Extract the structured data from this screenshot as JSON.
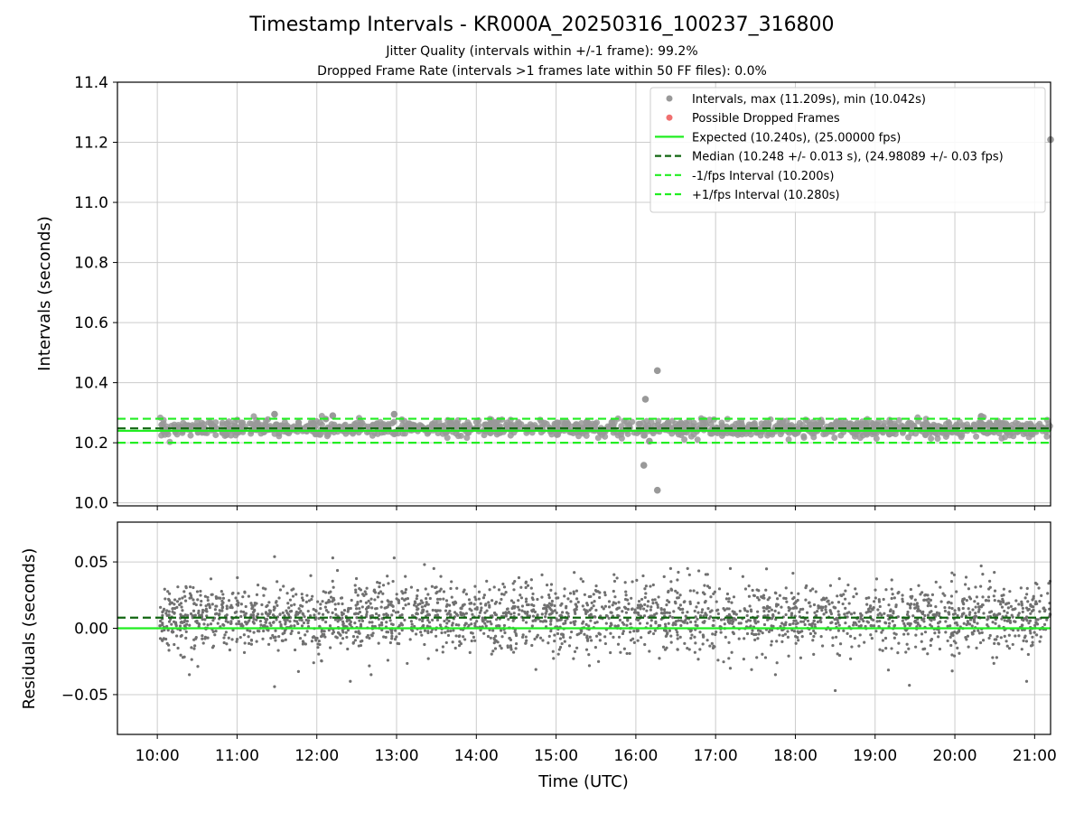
{
  "figure": {
    "title": "Timestamp Intervals - KR000A_20250316_100237_316800",
    "subtitle_1": "Jitter Quality (intervals within +/-1 frame): 99.2%",
    "subtitle_2": "Dropped Frame Rate (intervals >1 frames late within 50 FF files): 0.0%"
  },
  "colors": {
    "intervals": "#999999",
    "dropped": "#f07070",
    "expected": "#22ee22",
    "median": "#116611",
    "interval_band": "#22ee22",
    "residual_points": "#707070",
    "grid": "#cccccc"
  },
  "chart_data": [
    {
      "type": "scatter",
      "panel": "intervals",
      "ylabel": "Intervals (seconds)",
      "ylim": [
        9.99,
        11.4
      ],
      "xlim_hours": [
        9.5,
        21.2
      ],
      "grid": true,
      "legend_position": "top-right",
      "yticks": [
        {
          "value": 10.0,
          "label": "10.0"
        },
        {
          "value": 10.2,
          "label": "10.2"
        },
        {
          "value": 10.4,
          "label": "10.4"
        },
        {
          "value": 10.6,
          "label": "10.6"
        },
        {
          "value": 10.8,
          "label": "10.8"
        },
        {
          "value": 11.0,
          "label": "11.0"
        },
        {
          "value": 11.2,
          "label": "11.2"
        },
        {
          "value": 11.4,
          "label": "11.4"
        }
      ],
      "legend": [
        {
          "label": "Intervals, max (11.209s), min (10.042s)",
          "marker": "dot",
          "color": "#999999"
        },
        {
          "label": "Possible Dropped Frames",
          "marker": "dot",
          "color": "#f07070"
        },
        {
          "label": "Expected (10.240s), (25.00000 fps)",
          "marker": "solid",
          "color": "#22ee22"
        },
        {
          "label": "Median (10.248 +/- 0.013 s), (24.98089 +/- 0.03 fps)",
          "marker": "dashed",
          "color": "#116611"
        },
        {
          "label": "-1/fps Interval (10.200s)",
          "marker": "dashed",
          "color": "#22ee22"
        },
        {
          "label": "+1/fps Interval (10.280s)",
          "marker": "dashed",
          "color": "#22ee22"
        }
      ],
      "reference_lines": [
        {
          "name": "expected",
          "value": 10.24,
          "style": "solid",
          "color": "#22ee22"
        },
        {
          "name": "median",
          "value": 10.248,
          "style": "dashed",
          "color": "#116611"
        },
        {
          "name": "minus_one_frame",
          "value": 10.2,
          "style": "dashed",
          "color": "#22ee22"
        },
        {
          "name": "plus_one_frame",
          "value": 10.28,
          "style": "dashed",
          "color": "#22ee22"
        }
      ],
      "series": [
        {
          "name": "Intervals, max (11.209s), min (10.042s)",
          "cloud": {
            "x_start_hours": 10.03,
            "x_end_hours": 21.2,
            "count": 1300,
            "center": 10.248,
            "spread": 0.013
          },
          "outliers": [
            {
              "x_hours": 16.12,
              "y": 10.345
            },
            {
              "x_hours": 16.27,
              "y": 10.44
            },
            {
              "x_hours": 16.1,
              "y": 10.125
            },
            {
              "x_hours": 16.27,
              "y": 10.042
            },
            {
              "x_hours": 21.2,
              "y": 11.209
            },
            {
              "x_hours": 11.47,
              "y": 10.295
            },
            {
              "x_hours": 12.2,
              "y": 10.29
            },
            {
              "x_hours": 12.97,
              "y": 10.295
            },
            {
              "x_hours": 20.33,
              "y": 10.288
            },
            {
              "x_hours": 16.17,
              "y": 10.205
            }
          ]
        }
      ]
    },
    {
      "type": "scatter",
      "panel": "residuals",
      "ylabel": "Residuals (seconds)",
      "xlabel": "Time (UTC)",
      "ylim": [
        -0.08,
        0.08
      ],
      "xlim_hours": [
        9.5,
        21.2
      ],
      "grid": true,
      "yticks": [
        {
          "value": -0.05,
          "label": "−0.05"
        },
        {
          "value": 0.0,
          "label": "0.00"
        },
        {
          "value": 0.05,
          "label": "0.05"
        }
      ],
      "xticks": [
        {
          "value": 10,
          "label": "10:00"
        },
        {
          "value": 11,
          "label": "11:00"
        },
        {
          "value": 12,
          "label": "12:00"
        },
        {
          "value": 13,
          "label": "13:00"
        },
        {
          "value": 14,
          "label": "14:00"
        },
        {
          "value": 15,
          "label": "15:00"
        },
        {
          "value": 16,
          "label": "16:00"
        },
        {
          "value": 17,
          "label": "17:00"
        },
        {
          "value": 18,
          "label": "18:00"
        },
        {
          "value": 19,
          "label": "19:00"
        },
        {
          "value": 20,
          "label": "20:00"
        },
        {
          "value": 21,
          "label": "21:00"
        }
      ],
      "reference_lines": [
        {
          "name": "zero",
          "value": 0.0,
          "style": "solid",
          "color": "#22ee22"
        },
        {
          "name": "median_offset",
          "value": 0.008,
          "style": "dashed",
          "color": "#116611"
        }
      ],
      "series": [
        {
          "cloud": {
            "x_start_hours": 10.03,
            "x_end_hours": 21.2,
            "count": 2600,
            "center": 0.008,
            "spread": 0.013
          },
          "outliers": [
            {
              "x_hours": 11.47,
              "y": 0.054
            },
            {
              "x_hours": 12.2,
              "y": 0.053
            },
            {
              "x_hours": 12.97,
              "y": 0.053
            },
            {
              "x_hours": 13.35,
              "y": 0.048
            },
            {
              "x_hours": 20.33,
              "y": 0.047
            },
            {
              "x_hours": 11.47,
              "y": -0.044
            },
            {
              "x_hours": 18.5,
              "y": -0.047
            },
            {
              "x_hours": 20.9,
              "y": -0.04
            },
            {
              "x_hours": 12.42,
              "y": -0.04
            },
            {
              "x_hours": 19.43,
              "y": -0.043
            }
          ]
        }
      ]
    }
  ]
}
